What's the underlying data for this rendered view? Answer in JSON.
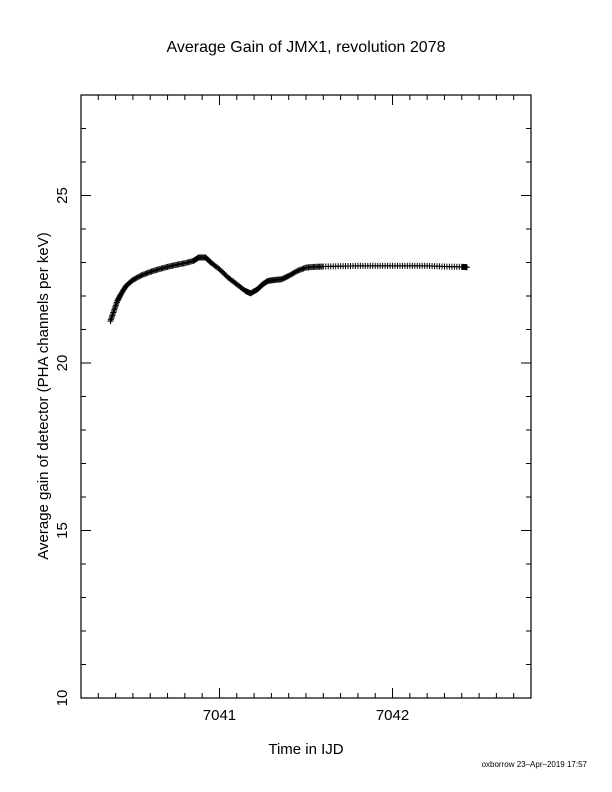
{
  "chart_data": {
    "type": "scatter",
    "title": "Average Gain of JMX1, revolution 2078",
    "xlabel": "Time in IJD",
    "ylabel": "Average gain of detector (PHA channels per keV)",
    "xlim": [
      7040.2,
      7042.8
    ],
    "ylim": [
      10,
      28
    ],
    "x_ticks": [
      7041,
      7042
    ],
    "x_tick_labels": [
      "7041",
      "7042"
    ],
    "y_ticks": [
      10,
      15,
      20,
      25
    ],
    "y_tick_labels": [
      "10",
      "15",
      "20",
      "25"
    ],
    "grid": false,
    "marker": "plus",
    "series": [
      {
        "points": [
          [
            7040.37,
            21.25
          ],
          [
            7040.39,
            21.55
          ],
          [
            7040.41,
            21.85
          ],
          [
            7040.43,
            22.05
          ],
          [
            7040.46,
            22.3
          ],
          [
            7040.5,
            22.48
          ],
          [
            7040.55,
            22.62
          ],
          [
            7040.6,
            22.72
          ],
          [
            7040.65,
            22.8
          ],
          [
            7040.7,
            22.87
          ],
          [
            7040.75,
            22.93
          ],
          [
            7040.8,
            22.98
          ],
          [
            7040.85,
            23.05
          ],
          [
            7040.88,
            23.15
          ],
          [
            7040.92,
            23.15
          ],
          [
            7040.95,
            23.0
          ],
          [
            7041.0,
            22.8
          ],
          [
            7041.05,
            22.55
          ],
          [
            7041.1,
            22.35
          ],
          [
            7041.15,
            22.15
          ],
          [
            7041.18,
            22.08
          ],
          [
            7041.22,
            22.2
          ],
          [
            7041.25,
            22.35
          ],
          [
            7041.28,
            22.45
          ],
          [
            7041.32,
            22.48
          ],
          [
            7041.36,
            22.5
          ],
          [
            7041.4,
            22.6
          ],
          [
            7041.45,
            22.75
          ],
          [
            7041.5,
            22.85
          ],
          [
            7041.55,
            22.87
          ],
          [
            7041.6,
            22.88
          ],
          [
            7041.7,
            22.89
          ],
          [
            7041.8,
            22.9
          ],
          [
            7041.9,
            22.9
          ],
          [
            7042.0,
            22.9
          ],
          [
            7042.1,
            22.9
          ],
          [
            7042.2,
            22.9
          ],
          [
            7042.3,
            22.88
          ],
          [
            7042.4,
            22.87
          ],
          [
            7042.43,
            22.86
          ]
        ]
      }
    ]
  },
  "footer_text": "oxborrow 23–Apr–2019 17:57"
}
